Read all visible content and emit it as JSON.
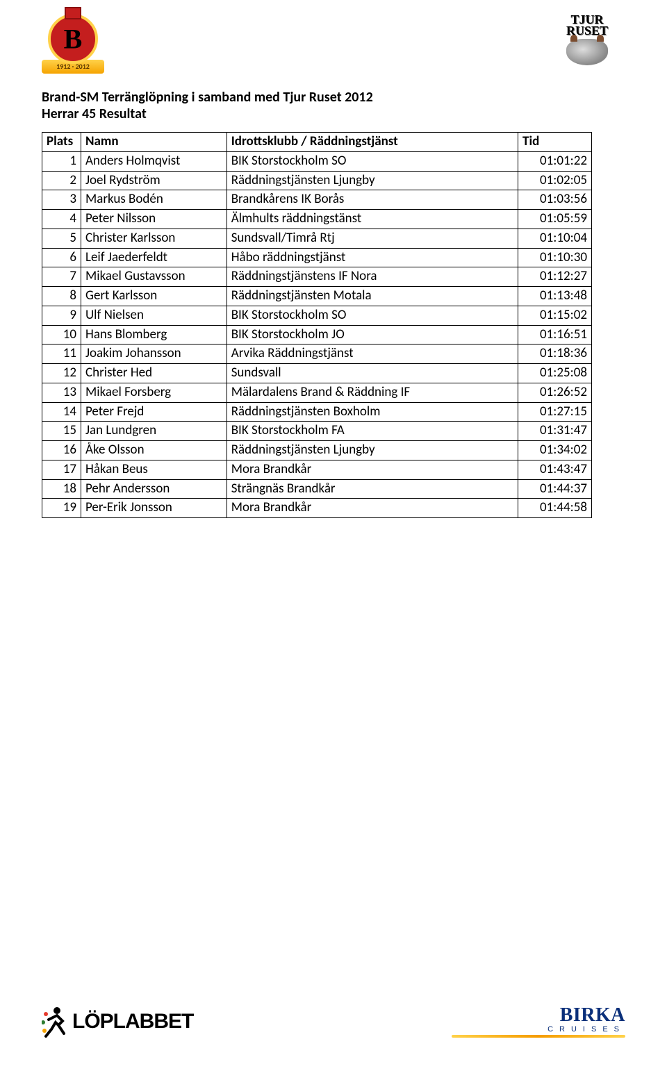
{
  "header": {
    "left_logo_ribbon": "1912 · 2012",
    "right_logo_line1": "TJUR",
    "right_logo_line2": "RUSET"
  },
  "title": "Brand-SM Terränglöpning i samband med Tjur Ruset 2012",
  "subtitle": "Herrar 45 Resultat",
  "table": {
    "columns": [
      "Plats",
      "Namn",
      "Idrottsklubb / Räddningstjänst",
      "Tid"
    ],
    "rows": [
      [
        "1",
        "Anders Holmqvist",
        "BIK Storstockholm SO",
        "01:01:22"
      ],
      [
        "2",
        "Joel Rydström",
        "Räddningstjänsten Ljungby",
        "01:02:05"
      ],
      [
        "3",
        "Markus Bodén",
        "Brandkårens IK Borås",
        "01:03:56"
      ],
      [
        "4",
        "Peter Nilsson",
        "Älmhults räddningstänst",
        "01:05:59"
      ],
      [
        "5",
        "Christer Karlsson",
        "Sundsvall/Timrå Rtj",
        "01:10:04"
      ],
      [
        "6",
        "Leif Jaederfeldt",
        "Håbo räddningstjänst",
        "01:10:30"
      ],
      [
        "7",
        "Mikael Gustavsson",
        "Räddningstjänstens IF Nora",
        "01:12:27"
      ],
      [
        "8",
        "Gert Karlsson",
        "Räddningstjänsten Motala",
        "01:13:48"
      ],
      [
        "9",
        "Ulf Nielsen",
        "BIK Storstockholm SO",
        "01:15:02"
      ],
      [
        "10",
        "Hans Blomberg",
        "BIK Storstockholm JO",
        "01:16:51"
      ],
      [
        "11",
        "Joakim Johansson",
        "Arvika Räddningstjänst",
        "01:18:36"
      ],
      [
        "12",
        "Christer Hed",
        "Sundsvall",
        "01:25:08"
      ],
      [
        "13",
        "Mikael Forsberg",
        "Mälardalens Brand & Räddning IF",
        "01:26:52"
      ],
      [
        "14",
        "Peter Frejd",
        "Räddningstjänsten Boxholm",
        "01:27:15"
      ],
      [
        "15",
        "Jan Lundgren",
        "BIK Storstockholm FA",
        "01:31:47"
      ],
      [
        "16",
        "Åke Olsson",
        "Räddningstjänsten Ljungby",
        "01:34:02"
      ],
      [
        "17",
        "Håkan Beus",
        "Mora Brandkår",
        "01:43:47"
      ],
      [
        "18",
        "Pehr Andersson",
        "Strängnäs Brandkår",
        "01:44:37"
      ],
      [
        "19",
        "Per-Erik Jonsson",
        "Mora Brandkår",
        "01:44:58"
      ]
    ],
    "col_align": [
      "right",
      "left",
      "left",
      "right"
    ],
    "border_color": "#000000",
    "font_size_pt": 14
  },
  "footer": {
    "loplabbet_text": "LÖPLABBET",
    "birka_brand": "BIRKA",
    "birka_sub": "CRUISES"
  },
  "colors": {
    "text": "#000000",
    "background": "#ffffff",
    "birka_blue": "#0a2f7a",
    "accent_red": "#c41e1e",
    "accent_gold": "#ffd24a"
  }
}
